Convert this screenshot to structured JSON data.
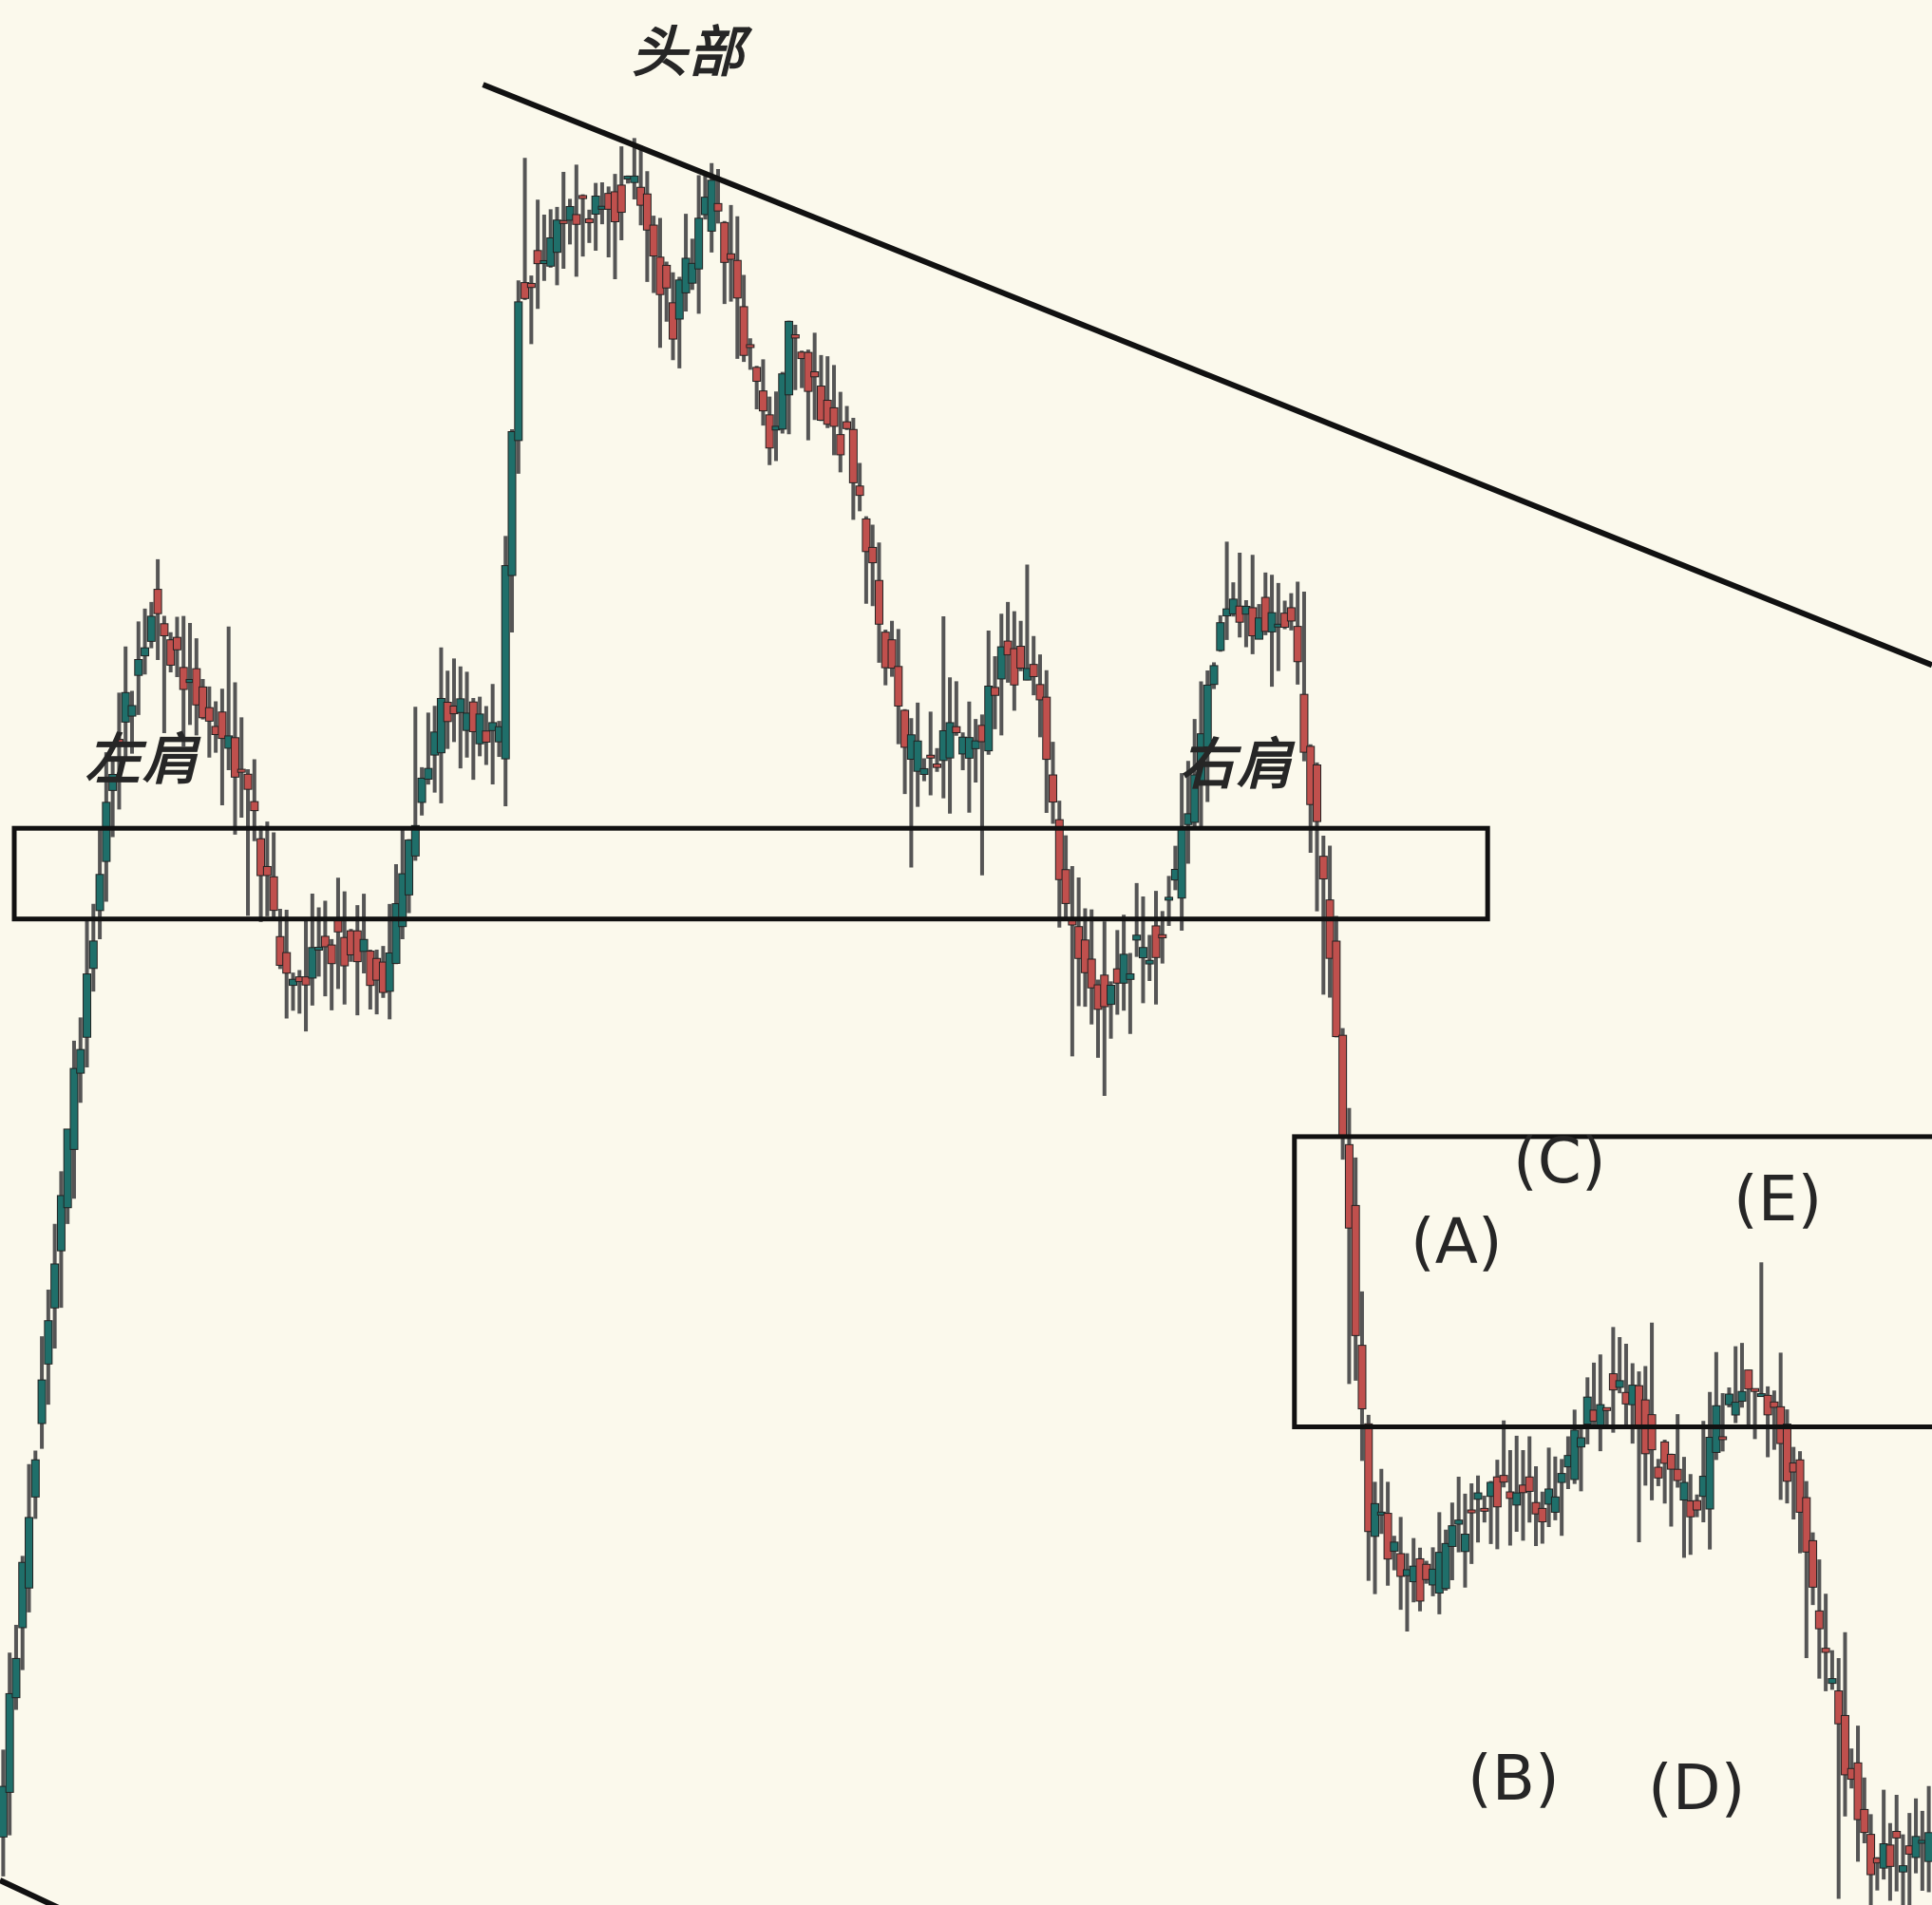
{
  "colors": {
    "background": "#fbf9ec",
    "bull_body": "#1f6f6a",
    "bear_body": "#c0504d",
    "wick": "#555555",
    "line": "#111111"
  },
  "labels": {
    "left_shoulder": "左肩",
    "head": "头部",
    "right_shoulder": "右肩",
    "wave_a": "(A)",
    "wave_b": "(B)",
    "wave_c": "(C)",
    "wave_d": "(D)",
    "wave_e": "(E)"
  },
  "chart_data": {
    "type": "candlestick",
    "title": "",
    "xlabel": "",
    "ylabel": "",
    "ylim": [
      0,
      100
    ],
    "grid": false,
    "legend": "none",
    "path": [
      [
        0,
        2
      ],
      [
        3,
        35
      ],
      [
        6,
        62
      ],
      [
        8,
        70
      ],
      [
        11,
        64
      ],
      [
        13,
        60
      ],
      [
        15,
        49
      ],
      [
        17,
        52
      ],
      [
        20,
        50
      ],
      [
        21,
        55
      ],
      [
        23,
        65
      ],
      [
        26,
        63
      ],
      [
        27,
        88
      ],
      [
        30,
        92
      ],
      [
        33,
        93
      ],
      [
        35,
        86
      ],
      [
        37,
        93
      ],
      [
        40,
        79
      ],
      [
        41,
        85
      ],
      [
        44,
        79
      ],
      [
        47,
        62
      ],
      [
        51,
        63
      ],
      [
        52,
        68
      ],
      [
        54,
        65
      ],
      [
        55,
        55
      ],
      [
        57,
        49
      ],
      [
        60,
        52
      ],
      [
        61,
        55
      ],
      [
        63,
        68
      ],
      [
        64,
        70
      ],
      [
        67,
        69
      ],
      [
        69,
        52
      ],
      [
        71,
        20
      ],
      [
        74,
        16
      ],
      [
        76,
        20
      ],
      [
        78,
        22
      ],
      [
        80,
        20
      ],
      [
        82,
        25
      ],
      [
        84,
        28
      ],
      [
        86,
        23
      ],
      [
        88,
        20
      ],
      [
        89,
        25
      ],
      [
        91,
        28
      ],
      [
        93,
        22
      ],
      [
        95,
        10
      ],
      [
        97,
        1
      ],
      [
        99,
        2
      ]
    ],
    "trendline": [
      [
        25,
        99
      ],
      [
        100,
        67
      ]
    ],
    "lower_line": [
      [
        0,
        0
      ],
      [
        4,
        -2
      ]
    ],
    "zones": [
      {
        "x": [
          0,
          77
        ],
        "y": [
          53,
          58
        ]
      },
      {
        "x": [
          67,
          100
        ],
        "y": [
          25,
          41
        ]
      }
    ],
    "annotations": [
      {
        "text_key": "left_shoulder",
        "x": 7,
        "y": 60
      },
      {
        "text_key": "head",
        "x": 36,
        "y": 97
      },
      {
        "text_key": "right_shoulder",
        "x": 64,
        "y": 60
      },
      {
        "text_key": "wave_a",
        "x": 75.5,
        "y": 35.5
      },
      {
        "text_key": "wave_b",
        "x": 78.5,
        "y": 6.5
      },
      {
        "text_key": "wave_c",
        "x": 81,
        "y": 39.5
      },
      {
        "text_key": "wave_d",
        "x": 88,
        "y": 6
      },
      {
        "text_key": "wave_e",
        "x": 92,
        "y": 37.5
      }
    ]
  }
}
